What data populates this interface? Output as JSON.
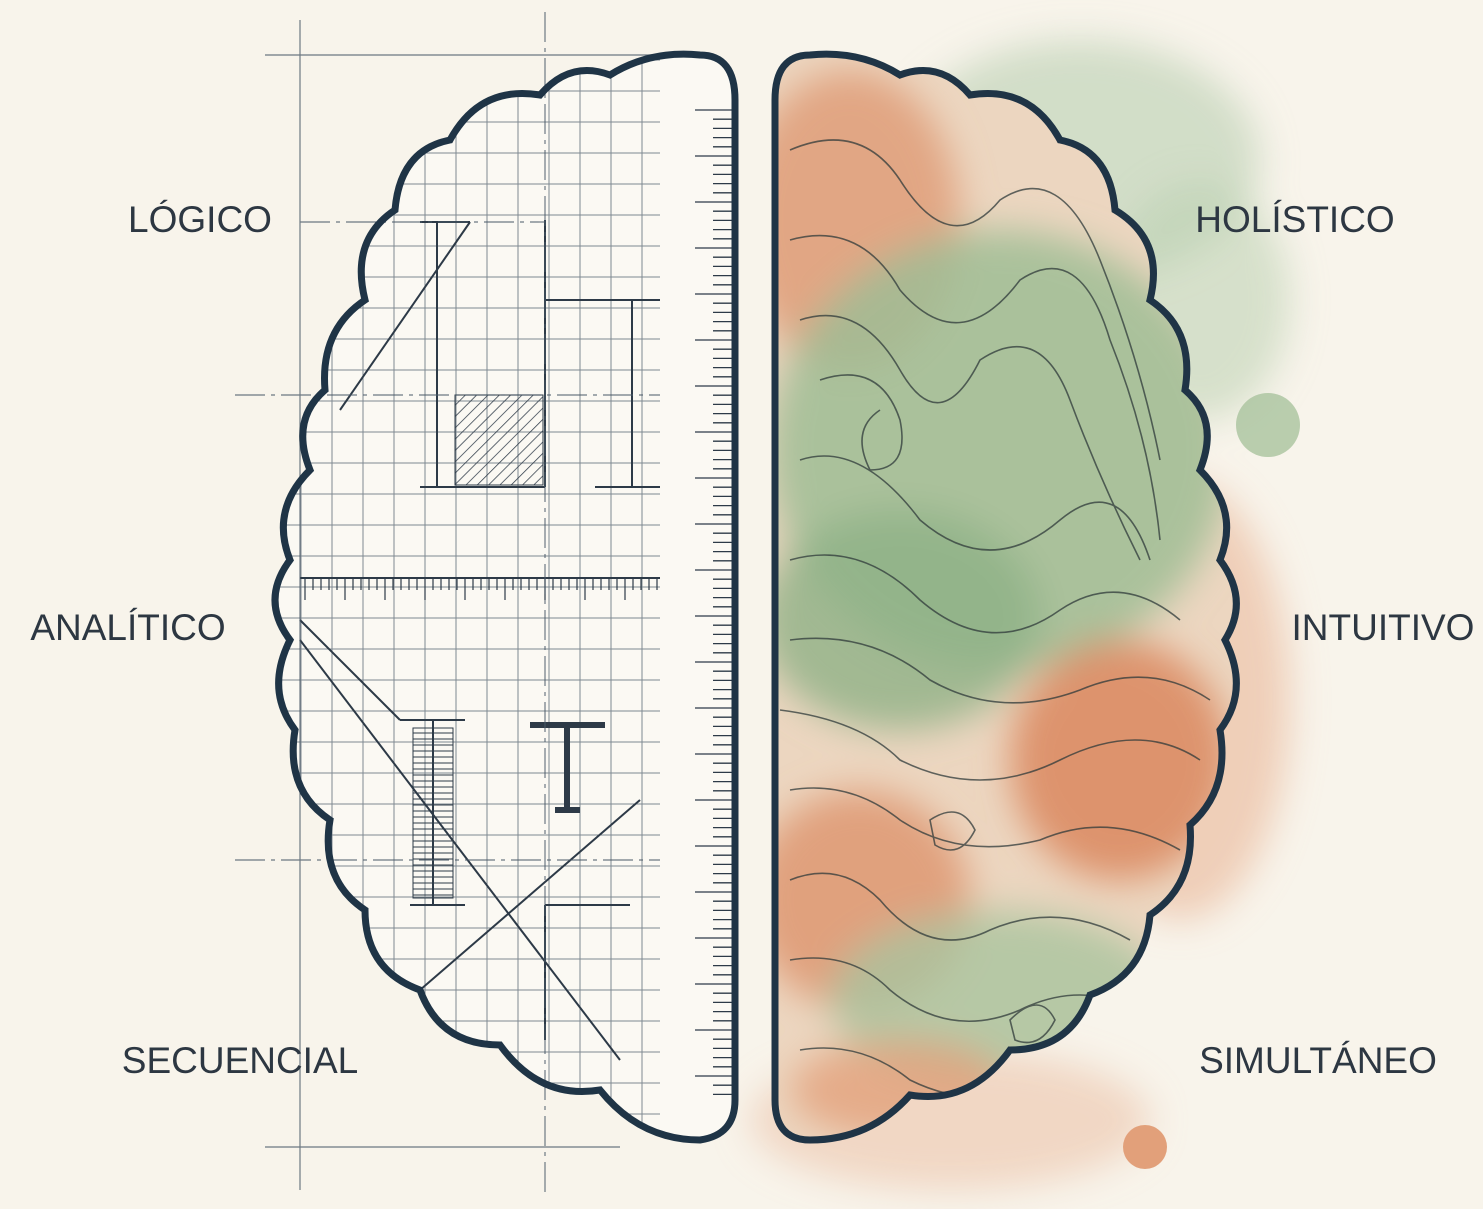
{
  "labels": {
    "left": [
      "LÓGICO",
      "ANALÍTICO",
      "SECUENCIAL"
    ],
    "right": [
      "HOLÍSTICO",
      "INTUITIVO",
      "SIMULTÁNEO"
    ]
  }
}
